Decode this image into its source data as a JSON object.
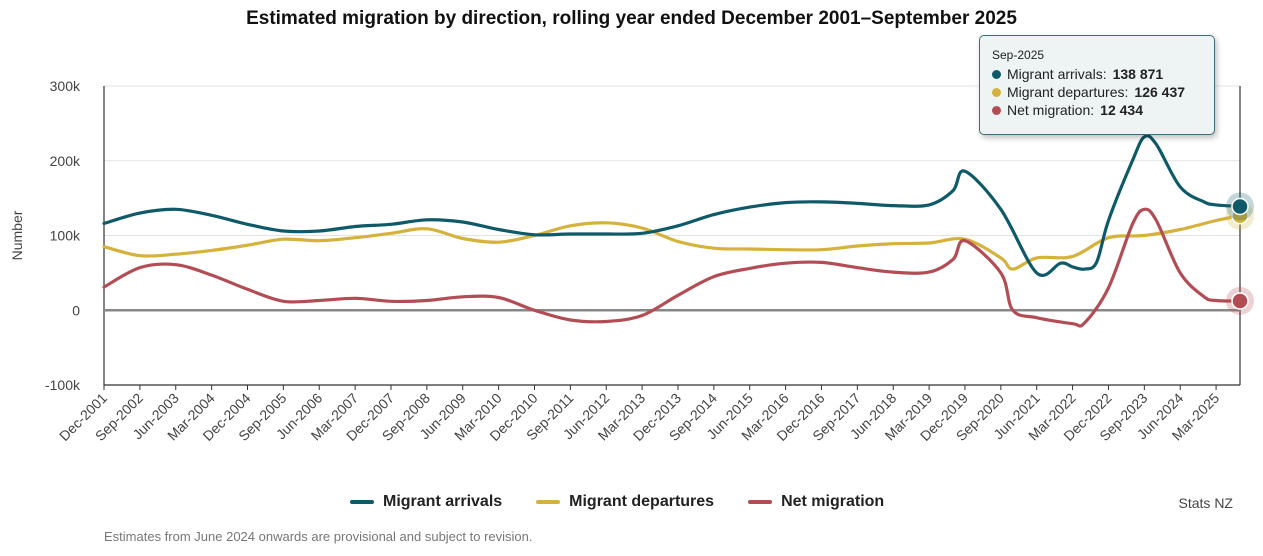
{
  "title": "Estimated migration by direction, rolling year ended December 2001–September 2025",
  "source": "Stats NZ",
  "footnote": "Estimates from June 2024 onwards are provisional and subject to revision.",
  "colors": {
    "arrivals": "#0f5a68",
    "departures": "#d4b23b",
    "net": "#b24d55",
    "zero_line": "#888888",
    "grid": "#e3e3e3"
  },
  "tooltip": {
    "date": "Sep-2025",
    "rows": [
      {
        "label": "Migrant arrivals:",
        "value": "138 871"
      },
      {
        "label": "Migrant departures:",
        "value": "126 437"
      },
      {
        "label": "Net migration:",
        "value": "12 434"
      }
    ]
  },
  "chart_data": {
    "type": "line",
    "title": "Estimated migration by direction, rolling year ended December 2001–September 2025",
    "ylabel": "Number",
    "xlabel": "",
    "x_range": [
      "Dec-2001",
      "Sep-2025"
    ],
    "ylim": [
      -100000,
      300000
    ],
    "y_ticks": [
      -100000,
      0,
      100000,
      200000,
      300000
    ],
    "y_tick_labels": [
      "-100k",
      "0",
      "100k",
      "200k",
      "300k"
    ],
    "x_tick_labels": [
      "Dec-2001",
      "Sep-2002",
      "Jun-2003",
      "Mar-2004",
      "Dec-2004",
      "Sep-2005",
      "Jun-2006",
      "Mar-2007",
      "Dec-2007",
      "Sep-2008",
      "Jun-2009",
      "Mar-2010",
      "Dec-2010",
      "Sep-2011",
      "Jun-2012",
      "Mar-2013",
      "Dec-2013",
      "Sep-2014",
      "Jun-2015",
      "Mar-2016",
      "Dec-2016",
      "Sep-2017",
      "Jun-2018",
      "Mar-2019",
      "Dec-2019",
      "Sep-2020",
      "Jun-2021",
      "Mar-2022",
      "Dec-2022",
      "Sep-2023",
      "Jun-2024",
      "Mar-2025"
    ],
    "grid": true,
    "legend_position": "bottom",
    "series": [
      {
        "name": "Migrant arrivals",
        "color": "#0f5a68",
        "points": [
          [
            "Dec-2001",
            116000
          ],
          [
            "Sep-2002",
            130000
          ],
          [
            "Jun-2003",
            135000
          ],
          [
            "Mar-2004",
            127000
          ],
          [
            "Dec-2004",
            115000
          ],
          [
            "Sep-2005",
            106000
          ],
          [
            "Jun-2006",
            106000
          ],
          [
            "Mar-2007",
            112000
          ],
          [
            "Dec-2007",
            115000
          ],
          [
            "Sep-2008",
            121000
          ],
          [
            "Jun-2009",
            118000
          ],
          [
            "Mar-2010",
            108000
          ],
          [
            "Dec-2010",
            101000
          ],
          [
            "Sep-2011",
            102000
          ],
          [
            "Jun-2012",
            102000
          ],
          [
            "Mar-2013",
            103000
          ],
          [
            "Dec-2013",
            113000
          ],
          [
            "Sep-2014",
            128000
          ],
          [
            "Jun-2015",
            138000
          ],
          [
            "Mar-2016",
            144000
          ],
          [
            "Dec-2016",
            145000
          ],
          [
            "Sep-2017",
            143000
          ],
          [
            "Jun-2018",
            140000
          ],
          [
            "Mar-2019",
            141000
          ],
          [
            "Sep-2019",
            160000
          ],
          [
            "Dec-2019",
            186000
          ],
          [
            "Sep-2020",
            135000
          ],
          [
            "Jun-2021",
            50000
          ],
          [
            "Dec-2021",
            63000
          ],
          [
            "Mar-2022",
            58000
          ],
          [
            "Jun-2022",
            55000
          ],
          [
            "Sep-2022",
            64000
          ],
          [
            "Dec-2022",
            120000
          ],
          [
            "Jun-2023",
            200000
          ],
          [
            "Sep-2023",
            232000
          ],
          [
            "Dec-2023",
            222000
          ],
          [
            "Jun-2024",
            165000
          ],
          [
            "Dec-2024",
            145000
          ],
          [
            "Mar-2025",
            141000
          ],
          [
            "Sep-2025",
            138871
          ]
        ]
      },
      {
        "name": "Migrant departures",
        "color": "#d4b23b",
        "points": [
          [
            "Dec-2001",
            85000
          ],
          [
            "Sep-2002",
            73000
          ],
          [
            "Jun-2003",
            75000
          ],
          [
            "Mar-2004",
            80000
          ],
          [
            "Dec-2004",
            87000
          ],
          [
            "Sep-2005",
            95000
          ],
          [
            "Jun-2006",
            93000
          ],
          [
            "Mar-2007",
            97000
          ],
          [
            "Dec-2007",
            103000
          ],
          [
            "Sep-2008",
            109000
          ],
          [
            "Jun-2009",
            96000
          ],
          [
            "Mar-2010",
            91000
          ],
          [
            "Dec-2010",
            100000
          ],
          [
            "Sep-2011",
            113000
          ],
          [
            "Jun-2012",
            117000
          ],
          [
            "Mar-2013",
            110000
          ],
          [
            "Dec-2013",
            92000
          ],
          [
            "Sep-2014",
            83000
          ],
          [
            "Jun-2015",
            82000
          ],
          [
            "Mar-2016",
            81000
          ],
          [
            "Dec-2016",
            81000
          ],
          [
            "Sep-2017",
            86000
          ],
          [
            "Jun-2018",
            89000
          ],
          [
            "Mar-2019",
            90000
          ],
          [
            "Dec-2019",
            95000
          ],
          [
            "Sep-2020",
            70000
          ],
          [
            "Dec-2020",
            55000
          ],
          [
            "Jun-2021",
            70000
          ],
          [
            "Mar-2022",
            72000
          ],
          [
            "Dec-2022",
            97000
          ],
          [
            "Sep-2023",
            100000
          ],
          [
            "Jun-2024",
            108000
          ],
          [
            "Mar-2025",
            120000
          ],
          [
            "Sep-2025",
            126437
          ]
        ]
      },
      {
        "name": "Net migration",
        "color": "#b24d55",
        "points": [
          [
            "Dec-2001",
            31000
          ],
          [
            "Sep-2002",
            57000
          ],
          [
            "Jun-2003",
            61000
          ],
          [
            "Mar-2004",
            47000
          ],
          [
            "Dec-2004",
            28000
          ],
          [
            "Sep-2005",
            12000
          ],
          [
            "Jun-2006",
            13000
          ],
          [
            "Mar-2007",
            16000
          ],
          [
            "Dec-2007",
            12000
          ],
          [
            "Sep-2008",
            13000
          ],
          [
            "Jun-2009",
            18000
          ],
          [
            "Mar-2010",
            17000
          ],
          [
            "Dec-2010",
            0
          ],
          [
            "Sep-2011",
            -13000
          ],
          [
            "Jun-2012",
            -15000
          ],
          [
            "Mar-2013",
            -7000
          ],
          [
            "Dec-2013",
            20000
          ],
          [
            "Sep-2014",
            45000
          ],
          [
            "Jun-2015",
            56000
          ],
          [
            "Mar-2016",
            63000
          ],
          [
            "Dec-2016",
            64000
          ],
          [
            "Sep-2017",
            57000
          ],
          [
            "Jun-2018",
            51000
          ],
          [
            "Mar-2019",
            51000
          ],
          [
            "Sep-2019",
            68000
          ],
          [
            "Dec-2019",
            93000
          ],
          [
            "Sep-2020",
            50000
          ],
          [
            "Dec-2020",
            0
          ],
          [
            "Jun-2021",
            -10000
          ],
          [
            "Mar-2022",
            -18000
          ],
          [
            "Jun-2022",
            -17000
          ],
          [
            "Dec-2022",
            30000
          ],
          [
            "Jun-2023",
            115000
          ],
          [
            "Sep-2023",
            135000
          ],
          [
            "Dec-2023",
            120000
          ],
          [
            "Jun-2024",
            50000
          ],
          [
            "Dec-2024",
            18000
          ],
          [
            "Mar-2025",
            13000
          ],
          [
            "Sep-2025",
            12434
          ]
        ]
      }
    ]
  }
}
